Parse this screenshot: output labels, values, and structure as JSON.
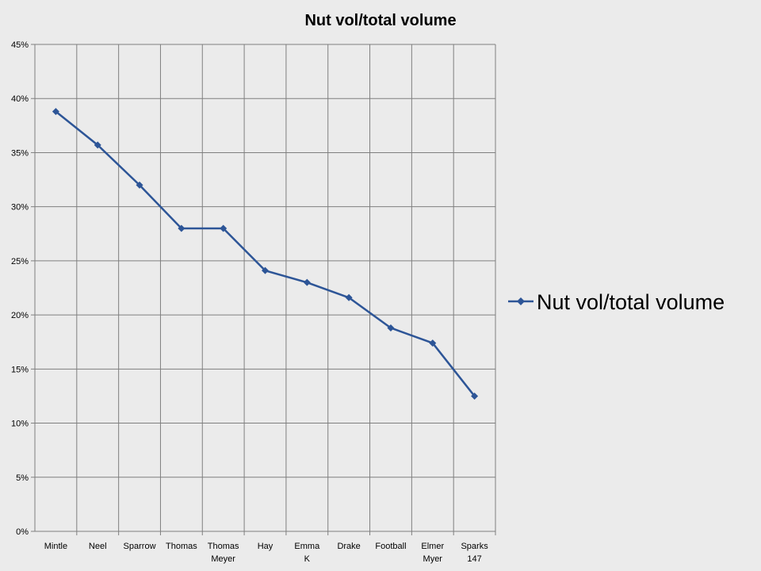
{
  "chart_data": {
    "type": "line",
    "title": "Nut vol/total volume",
    "categories": [
      "Mintle",
      "Neel",
      "Sparrow",
      "Thomas",
      "Thomas Meyer",
      "Hay",
      "Emma K",
      "Drake",
      "Football",
      "Elmer Myer",
      "Sparks 147"
    ],
    "series": [
      {
        "name": "Nut vol/total volume",
        "values": [
          38.8,
          35.7,
          32.0,
          28.0,
          28.0,
          24.1,
          23.0,
          21.6,
          18.8,
          17.4,
          12.5
        ]
      }
    ],
    "y_ticks": [
      "0%",
      "5%",
      "10%",
      "15%",
      "20%",
      "25%",
      "30%",
      "35%",
      "40%",
      "45%"
    ],
    "ylim": [
      0,
      45
    ],
    "ylabel": "",
    "xlabel": "",
    "grid": true,
    "legend": "right",
    "colors": {
      "line": "#2d5597",
      "grid": "#7f7f7f",
      "axis": "#7f7f7f"
    }
  }
}
